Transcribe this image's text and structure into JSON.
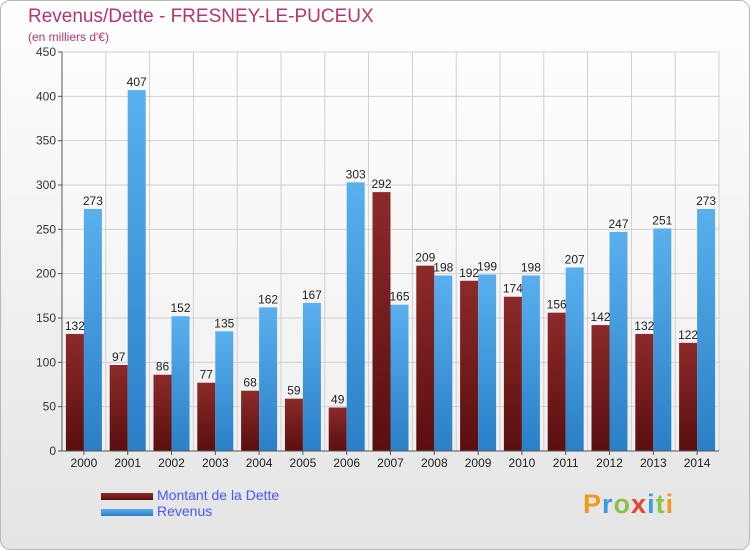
{
  "header": {
    "title": "Revenus/Dette - FRESNEY-LE-PUCEUX",
    "subtitle": "(en milliers d'€)"
  },
  "colors": {
    "dette": "#7a1b1b",
    "revenus": "#3d9be5",
    "title": "#b4366d",
    "legend_text": "#4a55ff"
  },
  "legend": {
    "items": [
      {
        "label": "Montant de la Dette",
        "color": "#7a1b1b"
      },
      {
        "label": "Revenus",
        "color": "#3d9be5"
      }
    ]
  },
  "logo": {
    "text": "Proxiti"
  },
  "chart_data": {
    "type": "bar",
    "title": "Revenus/Dette - FRESNEY-LE-PUCEUX",
    "subtitle": "(en milliers d'€)",
    "categories": [
      "2000",
      "2001",
      "2002",
      "2003",
      "2004",
      "2005",
      "2006",
      "2007",
      "2008",
      "2009",
      "2010",
      "2011",
      "2012",
      "2013",
      "2014"
    ],
    "series": [
      {
        "name": "Montant de la Dette",
        "values": [
          132,
          97,
          86,
          77,
          68,
          59,
          49,
          292,
          209,
          192,
          174,
          156,
          142,
          132,
          122
        ]
      },
      {
        "name": "Revenus",
        "values": [
          273,
          407,
          152,
          135,
          162,
          167,
          303,
          165,
          198,
          199,
          198,
          207,
          247,
          251,
          273
        ]
      }
    ],
    "ylim": [
      0,
      450
    ],
    "yticks": [
      0,
      50,
      100,
      150,
      200,
      250,
      300,
      350,
      400,
      450
    ],
    "grid": true,
    "legend_position": "bottom-left"
  }
}
